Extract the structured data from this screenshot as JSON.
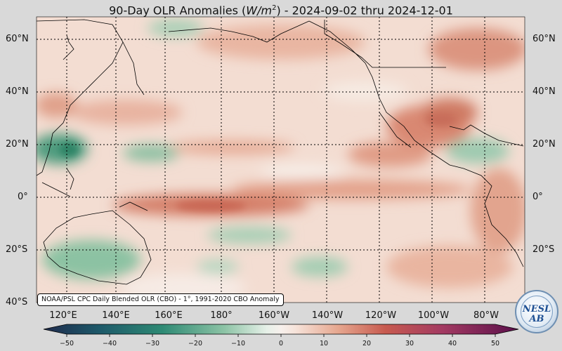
{
  "title": {
    "prefix": "90-Day OLR Anomalies (",
    "unit_base": "W/m",
    "unit_exp": "2",
    "suffix": ") - 2024-09-02 thru 2024-12-01"
  },
  "map": {
    "region": "Tropical and North Pacific",
    "lon_range_degE": [
      100,
      295
    ],
    "lat_range_deg": [
      -40,
      67
    ],
    "projection": "equirectangular",
    "grid": "dotted",
    "gridline_lons_degE": [
      120,
      140,
      160,
      180,
      200,
      220,
      240,
      260,
      280
    ],
    "gridline_lats_deg": [
      -20,
      0,
      20,
      40,
      60
    ]
  },
  "lat_labels": [
    "60°N",
    "40°N",
    "20°N",
    "0°",
    "20°S",
    "40°S"
  ],
  "lon_labels": [
    "120°E",
    "140°E",
    "160°E",
    "180°",
    "160°W",
    "140°W",
    "120°W",
    "100°W",
    "80°W"
  ],
  "credit": "NOAA/PSL CPC Daily Blended OLR (CBO) - 1°, 1991-2020 CBO Anomaly",
  "colorbar": {
    "min": -50,
    "max": 50,
    "ticks": [
      "−50",
      "−40",
      "−30",
      "−20",
      "−10",
      "0",
      "10",
      "20",
      "30",
      "40",
      "50"
    ],
    "colors": {
      "strong_negative": "#1f2b4d",
      "negative": "#2e8a74",
      "weak_negative": "#a9d3b8",
      "neutral": "#f7f0ec",
      "weak_positive": "#eab9a4",
      "positive": "#c75a4f",
      "strong_positive": "#5a0f4a"
    }
  },
  "logo": {
    "text": "NESL AB",
    "name": "NOAA PSL NEWLAB"
  }
}
